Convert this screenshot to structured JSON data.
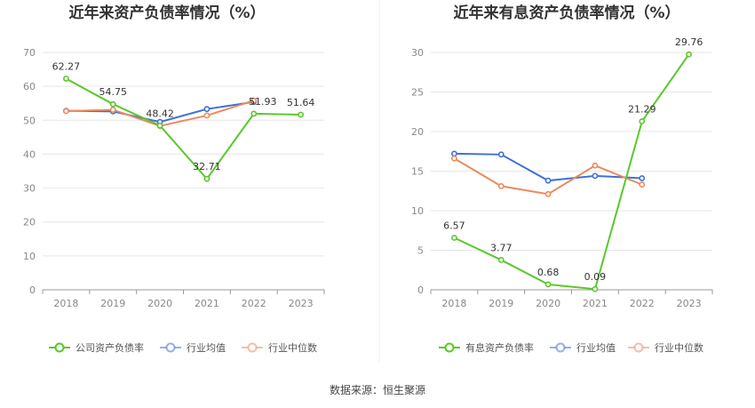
{
  "colors": {
    "company": "#5ac82a",
    "industry_avg": "#3f6fd9",
    "industry_median": "#ec8a5e",
    "grid": "#e6e6e6",
    "axis": "#999999"
  },
  "source_text": "数据来源：恒生聚源",
  "chart_data": [
    {
      "type": "line",
      "title": "近年来资产负债率情况（%）",
      "x": [
        "2018",
        "2019",
        "2020",
        "2021",
        "2022",
        "2023"
      ],
      "ylim": [
        0,
        70
      ],
      "yticks": [
        0,
        10,
        20,
        30,
        40,
        50,
        60,
        70
      ],
      "grid": true,
      "legend_position": "bottom",
      "series": [
        {
          "name": "公司资产负债率",
          "color_key": "company",
          "values": [
            62.27,
            54.75,
            48.42,
            32.71,
            51.93,
            51.64
          ],
          "labels": [
            "62.27",
            "54.75",
            "48.42",
            "32.71",
            "51.93",
            "51.64"
          ]
        },
        {
          "name": "行业均值",
          "color_key": "industry_avg",
          "values": [
            52.8,
            52.6,
            49.5,
            53.3,
            55.4,
            null
          ],
          "labels": null
        },
        {
          "name": "行业中位数",
          "color_key": "industry_median",
          "values": [
            52.7,
            53.1,
            48.3,
            51.4,
            55.8,
            null
          ],
          "labels": null
        }
      ]
    },
    {
      "type": "line",
      "title": "近年来有息资产负债率情况（%）",
      "x": [
        "2018",
        "2019",
        "2020",
        "2021",
        "2022",
        "2023"
      ],
      "ylim": [
        0,
        30
      ],
      "yticks": [
        0,
        5,
        10,
        15,
        20,
        25,
        30
      ],
      "grid": true,
      "legend_position": "bottom",
      "series": [
        {
          "name": "有息资产负债率",
          "color_key": "company",
          "values": [
            6.57,
            3.77,
            0.68,
            0.09,
            21.29,
            29.76
          ],
          "labels": [
            "6.57",
            "3.77",
            "0.68",
            "0.09",
            "21.29",
            "29.76"
          ]
        },
        {
          "name": "行业均值",
          "color_key": "industry_avg",
          "values": [
            17.2,
            17.1,
            13.8,
            14.4,
            14.1,
            null
          ],
          "labels": null
        },
        {
          "name": "行业中位数",
          "color_key": "industry_median",
          "values": [
            16.6,
            13.1,
            12.1,
            15.7,
            13.3,
            null
          ],
          "labels": null
        }
      ]
    }
  ]
}
